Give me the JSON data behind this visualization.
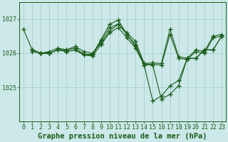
{
  "bg_color": "#cce8e8",
  "grid_color": "#aad0d0",
  "line_color": "#1a5c1a",
  "xlabel": "Graphe pression niveau de la mer (hPa)",
  "xlabel_fontsize": 7.5,
  "tick_fontsize": 6,
  "ytick_labels": [
    1025,
    1026,
    1027
  ],
  "ylim": [
    1024.3,
    1027.5
  ],
  "xlim": [
    -0.5,
    23.5
  ],
  "series": [
    {
      "x": [
        0,
        1,
        2,
        3,
        4,
        5,
        6,
        7,
        8,
        9,
        10,
        11,
        12,
        13,
        14,
        15,
        16,
        17,
        18,
        19,
        20,
        21,
        22,
        23
      ],
      "y": [
        1026.7,
        1026.1,
        1026.0,
        1026.0,
        1026.1,
        1026.1,
        1026.15,
        1025.97,
        1025.97,
        1026.4,
        1026.85,
        1026.97,
        1026.55,
        1026.25,
        1025.65,
        1024.6,
        1024.75,
        1025.05,
        1025.2,
        1025.85,
        1025.85,
        1026.1,
        1026.1,
        1026.5
      ]
    },
    {
      "x": [
        1,
        2,
        3,
        4,
        5,
        6,
        7,
        8,
        9,
        10,
        11,
        12,
        13,
        14,
        15,
        16,
        17,
        18,
        19,
        20,
        21,
        22,
        23
      ],
      "y": [
        1026.1,
        1026.0,
        1026.05,
        1026.15,
        1026.1,
        1026.2,
        1026.05,
        1026.0,
        1026.3,
        1026.65,
        1026.85,
        1026.6,
        1026.35,
        1025.7,
        1025.65,
        1024.65,
        1024.8,
        1025.05,
        1025.85,
        1025.85,
        1026.1,
        1026.1,
        1026.5
      ]
    },
    {
      "x": [
        1,
        2,
        3,
        4,
        5,
        6,
        7,
        8,
        9,
        10,
        11,
        12,
        13,
        14,
        15,
        16,
        17,
        18,
        19,
        20,
        21,
        22,
        23
      ],
      "y": [
        1026.1,
        1026.0,
        1026.0,
        1026.1,
        1026.05,
        1026.1,
        1025.95,
        1025.95,
        1026.35,
        1026.75,
        1026.85,
        1026.55,
        1026.2,
        1025.7,
        1025.72,
        1025.7,
        1026.7,
        1025.9,
        1025.85,
        1026.1,
        1026.05,
        1026.5,
        1026.55
      ]
    },
    {
      "x": [
        1,
        2,
        3,
        4,
        5,
        6,
        7,
        8,
        9,
        10,
        11,
        12,
        13,
        14,
        15,
        16,
        17,
        18,
        19,
        20,
        21,
        22,
        23
      ],
      "y": [
        1026.05,
        1026.0,
        1026.0,
        1026.1,
        1026.05,
        1026.1,
        1025.95,
        1025.92,
        1026.25,
        1026.6,
        1026.75,
        1026.45,
        1026.15,
        1025.65,
        1025.68,
        1025.65,
        1026.55,
        1025.85,
        1025.82,
        1026.05,
        1026.0,
        1026.45,
        1026.5
      ]
    }
  ]
}
